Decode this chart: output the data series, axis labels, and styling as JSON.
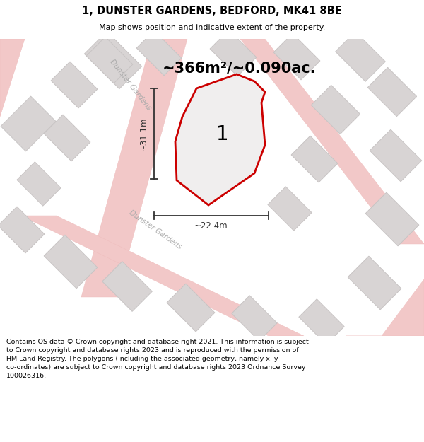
{
  "title": "1, DUNSTER GARDENS, BEDFORD, MK41 8BE",
  "subtitle": "Map shows position and indicative extent of the property.",
  "area_text": "~366m²/~0.090ac.",
  "property_number": "1",
  "dim_width": "~22.4m",
  "dim_height": "~31.1m",
  "footer_line1": "Contains OS data © Crown copyright and database right 2021. This information is subject",
  "footer_line2": "to Crown copyright and database rights 2023 and is reproduced with the permission of",
  "footer_line3": "HM Land Registry. The polygons (including the associated geometry, namely x, y",
  "footer_line4": "co-ordinates) are subject to Crown copyright and database rights 2023 Ordnance Survey",
  "footer_line5": "100026316.",
  "map_bg": "#f7f5f5",
  "road_color": "#f2c8c8",
  "road_edge_color": "#eebbbb",
  "building_color": "#d8d4d4",
  "building_edge": "#c8c4c4",
  "property_fill": "#f0eeee",
  "property_outline": "#cc0000",
  "street_label_color": "#aaaaaa",
  "dim_color": "#333333",
  "street_label_upper": "Dunster Gardens",
  "street_label_lower": "Dunster Gardens"
}
